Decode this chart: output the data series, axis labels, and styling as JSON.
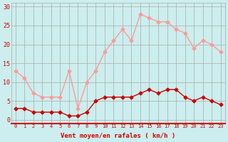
{
  "hours": [
    0,
    1,
    2,
    3,
    4,
    5,
    6,
    7,
    8,
    9,
    10,
    11,
    12,
    13,
    14,
    15,
    16,
    17,
    18,
    19,
    20,
    21,
    22,
    23
  ],
  "vent_moyen": [
    3,
    3,
    2,
    2,
    2,
    2,
    1,
    1,
    2,
    5,
    6,
    6,
    6,
    6,
    7,
    8,
    7,
    8,
    8,
    6,
    5,
    6,
    5,
    4
  ],
  "vent_rafales": [
    13,
    11,
    7,
    6,
    6,
    6,
    13,
    3,
    10,
    13,
    18,
    21,
    24,
    21,
    28,
    27,
    26,
    26,
    24,
    23,
    19,
    21,
    20,
    18
  ],
  "color_moyen": "#cc0000",
  "color_rafales": "#ff9999",
  "bg_color": "#cceeee",
  "grid_color": "#aaaaaa",
  "xlabel": "Vent moyen/en rafales ( km/h )",
  "ylabel_ticks": [
    0,
    5,
    10,
    15,
    20,
    25,
    30
  ],
  "ylim": [
    -1,
    31
  ],
  "xlim": [
    -0.5,
    23.5
  ],
  "tick_color": "#cc0000",
  "xlabel_color": "#cc0000"
}
